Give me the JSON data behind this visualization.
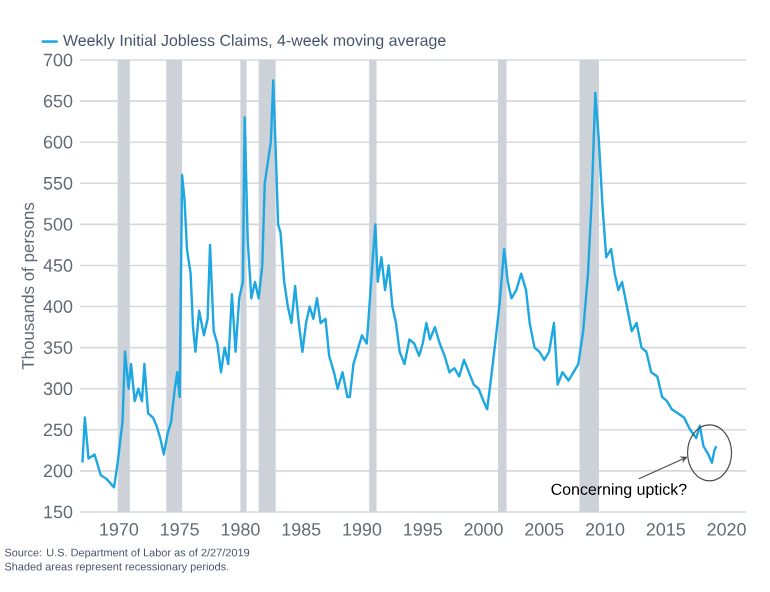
{
  "chart_data": {
    "type": "line",
    "ylabel": "Thousands of persons",
    "x": [
      1967.0,
      1967.2,
      1967.5,
      1968.0,
      1968.5,
      1969.0,
      1969.3,
      1969.6,
      1969.9,
      1970.3,
      1970.5,
      1970.8,
      1971.0,
      1971.3,
      1971.6,
      1971.9,
      1972.1,
      1972.4,
      1972.8,
      1973.1,
      1973.4,
      1973.7,
      1974.0,
      1974.3,
      1974.6,
      1974.8,
      1975.0,
      1975.2,
      1975.4,
      1975.6,
      1975.9,
      1976.1,
      1976.3,
      1976.6,
      1977.0,
      1977.3,
      1977.5,
      1977.8,
      1978.1,
      1978.4,
      1978.7,
      1979.0,
      1979.3,
      1979.6,
      1979.9,
      1980.2,
      1980.35,
      1980.6,
      1980.9,
      1981.2,
      1981.5,
      1981.8,
      1982.0,
      1982.3,
      1982.5,
      1982.7,
      1982.9,
      1983.1,
      1983.3,
      1983.6,
      1983.9,
      1984.2,
      1984.5,
      1984.8,
      1985.1,
      1985.4,
      1985.7,
      1986.0,
      1986.3,
      1986.6,
      1987.0,
      1987.3,
      1987.7,
      1988.0,
      1988.4,
      1988.8,
      1989.0,
      1989.3,
      1989.7,
      1990.0,
      1990.4,
      1990.8,
      1991.1,
      1991.3,
      1991.6,
      1991.9,
      1992.2,
      1992.5,
      1992.8,
      1993.1,
      1993.5,
      1993.9,
      1994.3,
      1994.7,
      1995.0,
      1995.3,
      1995.6,
      1996.0,
      1996.4,
      1996.8,
      1997.2,
      1997.6,
      1998.0,
      1998.4,
      1998.8,
      1999.2,
      1999.6,
      2000.0,
      2000.3,
      2000.6,
      2001.0,
      2001.3,
      2001.7,
      2002.0,
      2002.3,
      2002.7,
      2003.1,
      2003.5,
      2003.8,
      2004.2,
      2004.6,
      2005.0,
      2005.4,
      2005.8,
      2006.1,
      2006.5,
      2007.0,
      2007.4,
      2007.8,
      2008.2,
      2008.6,
      2008.9,
      2009.2,
      2009.5,
      2009.8,
      2010.1,
      2010.5,
      2010.8,
      2011.1,
      2011.4,
      2011.8,
      2012.2,
      2012.6,
      2013.0,
      2013.4,
      2013.8,
      2014.3,
      2014.7,
      2015.1,
      2015.5,
      2016.0,
      2016.5,
      2017.0,
      2017.5,
      2017.8,
      2018.1,
      2018.5,
      2018.8,
      2019.0,
      2019.15
    ],
    "series": [
      {
        "name": "Weekly Initial Jobless Claims, 4-week moving average",
        "color": "#1ea7e1",
        "values": [
          210,
          265,
          215,
          220,
          195,
          190,
          185,
          180,
          210,
          260,
          345,
          300,
          330,
          285,
          300,
          285,
          330,
          270,
          265,
          255,
          240,
          220,
          245,
          260,
          300,
          320,
          290,
          560,
          530,
          470,
          440,
          375,
          345,
          395,
          365,
          385,
          475,
          370,
          355,
          320,
          350,
          330,
          415,
          345,
          410,
          430,
          630,
          480,
          410,
          430,
          410,
          450,
          550,
          580,
          600,
          675,
          590,
          500,
          490,
          430,
          400,
          380,
          425,
          380,
          345,
          380,
          400,
          385,
          410,
          380,
          385,
          340,
          320,
          300,
          320,
          290,
          290,
          330,
          350,
          365,
          355,
          440,
          500,
          430,
          460,
          420,
          450,
          400,
          380,
          345,
          330,
          360,
          355,
          340,
          355,
          380,
          360,
          375,
          355,
          340,
          320,
          325,
          315,
          335,
          320,
          305,
          300,
          285,
          275,
          310,
          360,
          400,
          470,
          430,
          410,
          420,
          440,
          420,
          380,
          350,
          345,
          335,
          345,
          380,
          305,
          320,
          310,
          320,
          330,
          370,
          440,
          530,
          660,
          600,
          520,
          460,
          470,
          440,
          420,
          430,
          400,
          370,
          380,
          350,
          345,
          320,
          315,
          290,
          285,
          275,
          270,
          265,
          250,
          240,
          255,
          230,
          220,
          210,
          225,
          230
        ]
      }
    ],
    "xlim": [
      1966.8,
      2021.6
    ],
    "ylim": [
      150,
      700
    ],
    "xticks": [
      1970,
      1975,
      1980,
      1985,
      1990,
      1995,
      2000,
      2005,
      2010,
      2015,
      2020
    ],
    "yticks": [
      150,
      200,
      250,
      300,
      350,
      400,
      450,
      500,
      550,
      600,
      650,
      700
    ],
    "grid": "y",
    "legend": "top left",
    "bands": [
      {
        "axis": "x",
        "from": 1969.9,
        "to": 1970.9,
        "color": "#cdd2d8"
      },
      {
        "axis": "x",
        "from": 1973.9,
        "to": 1975.2,
        "color": "#cdd2d8"
      },
      {
        "axis": "x",
        "from": 1980.0,
        "to": 1980.5,
        "color": "#cdd2d8"
      },
      {
        "axis": "x",
        "from": 1981.5,
        "to": 1982.9,
        "color": "#cdd2d8"
      },
      {
        "axis": "x",
        "from": 1990.6,
        "to": 1991.2,
        "color": "#cdd2d8"
      },
      {
        "axis": "x",
        "from": 2001.2,
        "to": 2001.9,
        "color": "#cdd2d8"
      },
      {
        "axis": "x",
        "from": 2007.9,
        "to": 2009.5,
        "color": "#cdd2d8"
      }
    ],
    "annotations": [
      {
        "text": "Concerning uptick?",
        "x": 2018.6,
        "y": 222
      },
      "Source: U.S. Department of Labor as of 2/27/2019",
      "Shaded areas represent recessionary periods."
    ]
  }
}
